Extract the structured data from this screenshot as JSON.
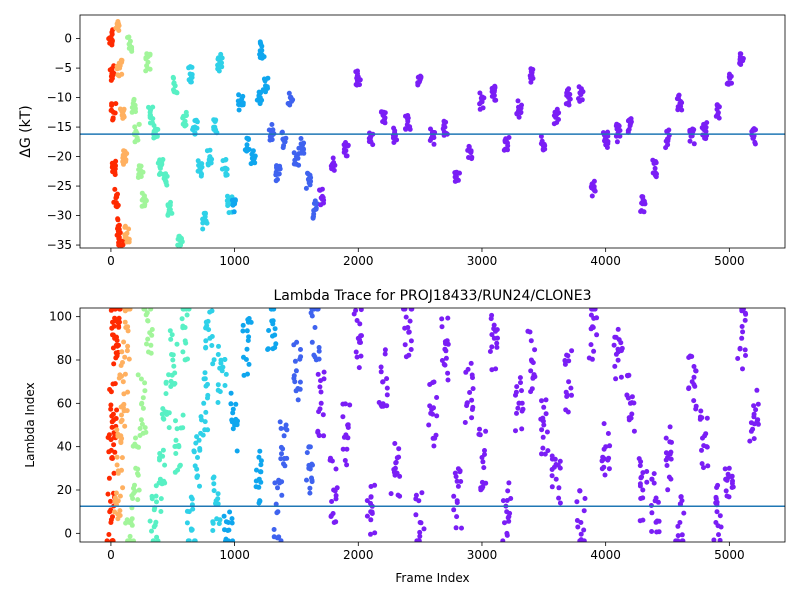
{
  "chart_data": [
    {
      "type": "scatter",
      "title": "",
      "xlabel": "",
      "ylabel": "ΔG (kT)",
      "xlim": [
        -250,
        5450
      ],
      "ylim": [
        -35.5,
        4
      ],
      "xticks": [
        0,
        1000,
        2000,
        3000,
        4000,
        5000
      ],
      "yticks": [
        0,
        -5,
        -10,
        -15,
        -20,
        -25,
        -30,
        -35
      ],
      "hline": -16.2,
      "hline_color": "#1f77b4",
      "colormap": "rainbow (frame index, high=red → low=purple)",
      "points_by_segment": [
        {
          "x": [
            0,
            10,
            20,
            30,
            40,
            60,
            80
          ],
          "y": [
            0.2,
            -5.8,
            -12.5,
            -22,
            -27,
            -32,
            -35
          ],
          "color": "#ff2a00"
        },
        {
          "x": [
            50,
            70,
            90,
            110,
            130
          ],
          "y": [
            2.5,
            -5,
            -13,
            -20,
            -33
          ],
          "color": "#ffb060"
        },
        {
          "x": [
            150,
            180,
            210,
            240,
            270,
            300
          ],
          "y": [
            -1,
            -11,
            -16,
            -23,
            -27,
            -4
          ],
          "color": "#a2f59a"
        },
        {
          "x": [
            320,
            360,
            400,
            440,
            480,
            520,
            560,
            600
          ],
          "y": [
            -13,
            -16,
            -22,
            -24,
            -29,
            -8,
            -35,
            -14
          ],
          "color": "#58f0c4"
        },
        {
          "x": [
            640,
            680,
            720,
            760,
            800,
            840,
            880,
            920,
            960
          ],
          "y": [
            -6,
            -15,
            -22,
            -31,
            -20,
            -15,
            -4,
            -22,
            -28
          ],
          "color": "#2fd1e8"
        },
        {
          "x": [
            1000,
            1050,
            1100,
            1150,
            1200,
            1220,
            1250
          ],
          "y": [
            -28,
            -11,
            -18,
            -20,
            -10,
            -2,
            -8
          ],
          "color": "#0fa6ee"
        },
        {
          "x": [
            1300,
            1350,
            1400,
            1450,
            1500,
            1550,
            1600,
            1650
          ],
          "y": [
            -16,
            -23,
            -17,
            -10,
            -20,
            -18,
            -24,
            -29
          ],
          "color": "#3f63ef"
        },
        {
          "x": [
            1700,
            1800,
            1900,
            2000,
            2100,
            2200,
            2300,
            2400,
            2500,
            2600,
            2700,
            2800,
            2900,
            3000,
            3100,
            3200,
            3300,
            3400,
            3500,
            3600,
            3700,
            3800,
            3900,
            4000,
            4100,
            4200,
            4300,
            4400,
            4500,
            4600,
            4700,
            4800,
            4900,
            5000,
            5100,
            5200
          ],
          "y": [
            -27,
            -21,
            -19,
            -6.5,
            -16.5,
            -13,
            -16.5,
            -14,
            -7,
            -16.5,
            -15,
            -24,
            -19,
            -10.5,
            -9,
            -17.5,
            -12,
            -6.5,
            -18,
            -13,
            -10,
            -9.5,
            -25.5,
            -17,
            -16,
            -14.5,
            -28,
            -22,
            -17,
            -11,
            -16.5,
            -15.5,
            -12,
            -6.5,
            -3.5,
            -16.5
          ],
          "color": "#7a1ef5"
        }
      ]
    },
    {
      "type": "scatter",
      "title": "Lambda Trace for PROJ18433/RUN24/CLONE3",
      "xlabel": "Frame Index",
      "ylabel": "Lambda Index",
      "xlim": [
        -250,
        5450
      ],
      "ylim": [
        -4,
        104
      ],
      "xticks": [
        0,
        1000,
        2000,
        3000,
        4000,
        5000
      ],
      "yticks": [
        0,
        20,
        40,
        60,
        80,
        100
      ],
      "hline": 12.5,
      "hline_color": "#1f77b4",
      "colormap": "rainbow by frame index",
      "points_by_segment": [
        {
          "x": [
            0,
            10,
            20,
            30,
            40
          ],
          "y": [
            5,
            35,
            55,
            90,
            98
          ],
          "color": "#ff2a00"
        },
        {
          "x": [
            60,
            80,
            100,
            120
          ],
          "y": [
            15,
            45,
            70,
            95
          ],
          "color": "#ffb060"
        },
        {
          "x": [
            150,
            200,
            250,
            300
          ],
          "y": [
            5,
            30,
            60,
            98
          ],
          "color": "#a2f59a"
        },
        {
          "x": [
            350,
            400,
            450,
            500,
            550,
            600
          ],
          "y": [
            3,
            25,
            55,
            80,
            40,
            95
          ],
          "color": "#58f0c4"
        },
        {
          "x": [
            650,
            700,
            750,
            800,
            850,
            900
          ],
          "y": [
            2,
            35,
            60,
            90,
            15,
            75
          ],
          "color": "#2fd1e8"
        },
        {
          "x": [
            950,
            1000,
            1100,
            1200,
            1300
          ],
          "y": [
            5,
            50,
            85,
            25,
            98
          ],
          "color": "#0fa6ee"
        },
        {
          "x": [
            1350,
            1400,
            1500,
            1600,
            1650
          ],
          "y": [
            10,
            45,
            75,
            30,
            95
          ],
          "color": "#3f63ef"
        },
        {
          "x": [
            1700,
            1800,
            1900,
            2000,
            2100,
            2200,
            2300,
            2400,
            2500,
            2600,
            2700,
            2800,
            2900,
            3000,
            3100,
            3200,
            3300,
            3400,
            3500,
            3600,
            3700,
            3800,
            3900,
            4000,
            4100,
            4200,
            4300,
            4400,
            4500,
            4600,
            4700,
            4800,
            4900,
            5000,
            5100,
            5200
          ],
          "y": [
            60,
            20,
            45,
            90,
            10,
            70,
            30,
            95,
            5,
            55,
            85,
            15,
            65,
            35,
            90,
            10,
            60,
            80,
            50,
            25,
            70,
            5,
            95,
            40,
            85,
            60,
            20,
            15,
            35,
            5,
            70,
            45,
            10,
            30,
            90,
            55
          ],
          "color": "#7a1ef5"
        }
      ]
    }
  ]
}
